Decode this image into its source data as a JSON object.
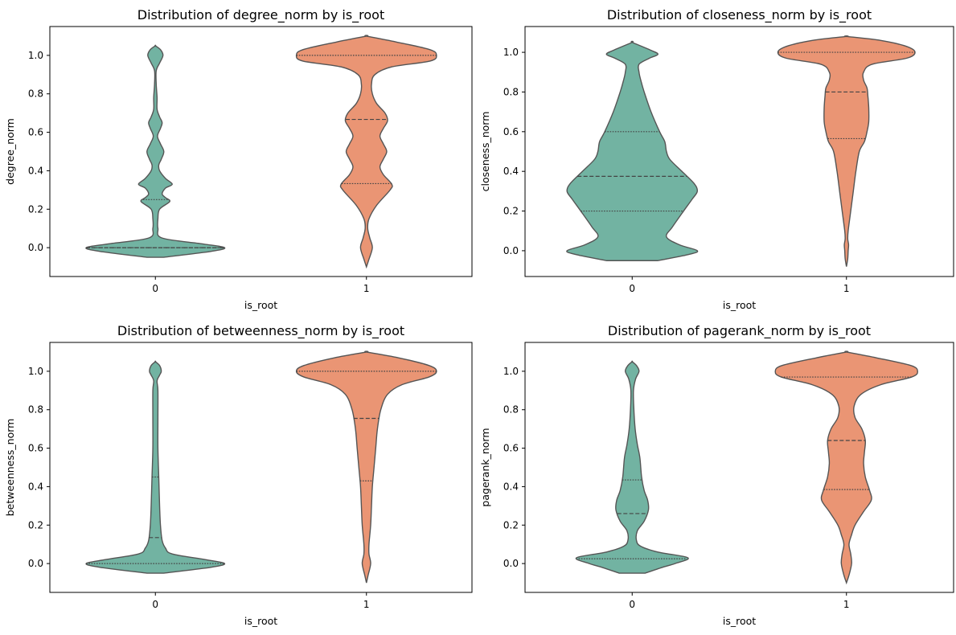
{
  "chart_data": [
    {
      "type": "violin",
      "title": "Distribution of degree_norm by is_root",
      "xlabel": "is_root",
      "ylabel": "degree_norm",
      "categories": [
        "0",
        "1"
      ],
      "ylim": [
        -0.15,
        1.15
      ],
      "yticks": [
        "0.0",
        "0.2",
        "0.4",
        "0.6",
        "0.8",
        "1.0"
      ],
      "grid": false,
      "groups": [
        {
          "category": "0",
          "color": "#72b3a2",
          "range": [
            -0.05,
            1.05
          ],
          "profile": [
            [
              -0.05,
              0.1
            ],
            [
              -0.02,
              0.65
            ],
            [
              0.0,
              0.82
            ],
            [
              0.02,
              0.55
            ],
            [
              0.05,
              0.08
            ],
            [
              0.1,
              0.03
            ],
            [
              0.15,
              0.03
            ],
            [
              0.2,
              0.05
            ],
            [
              0.24,
              0.17
            ],
            [
              0.26,
              0.12
            ],
            [
              0.28,
              0.08
            ],
            [
              0.31,
              0.12
            ],
            [
              0.33,
              0.2
            ],
            [
              0.36,
              0.12
            ],
            [
              0.4,
              0.05
            ],
            [
              0.43,
              0.04
            ],
            [
              0.46,
              0.07
            ],
            [
              0.5,
              0.1
            ],
            [
              0.54,
              0.06
            ],
            [
              0.58,
              0.025
            ],
            [
              0.62,
              0.06
            ],
            [
              0.65,
              0.08
            ],
            [
              0.68,
              0.05
            ],
            [
              0.72,
              0.02
            ],
            [
              0.78,
              0.02
            ],
            [
              0.85,
              0.01
            ],
            [
              0.92,
              0.01
            ],
            [
              0.96,
              0.05
            ],
            [
              1.0,
              0.09
            ],
            [
              1.03,
              0.06
            ],
            [
              1.05,
              0.0
            ]
          ],
          "quartiles": [
            0.0,
            0.0,
            0.25
          ]
        },
        {
          "category": "1",
          "color": "#ea9574",
          "range": [
            -0.1,
            1.1
          ],
          "profile": [
            [
              -0.1,
              0.0
            ],
            [
              -0.06,
              0.03
            ],
            [
              0.0,
              0.07
            ],
            [
              0.05,
              0.04
            ],
            [
              0.1,
              0.015
            ],
            [
              0.15,
              0.03
            ],
            [
              0.22,
              0.12
            ],
            [
              0.3,
              0.28
            ],
            [
              0.33,
              0.3
            ],
            [
              0.38,
              0.2
            ],
            [
              0.42,
              0.16
            ],
            [
              0.46,
              0.2
            ],
            [
              0.5,
              0.24
            ],
            [
              0.54,
              0.2
            ],
            [
              0.58,
              0.16
            ],
            [
              0.62,
              0.2
            ],
            [
              0.66,
              0.25
            ],
            [
              0.7,
              0.22
            ],
            [
              0.75,
              0.12
            ],
            [
              0.8,
              0.07
            ],
            [
              0.85,
              0.06
            ],
            [
              0.9,
              0.1
            ],
            [
              0.94,
              0.3
            ],
            [
              0.97,
              0.75
            ],
            [
              1.0,
              0.83
            ],
            [
              1.03,
              0.75
            ],
            [
              1.07,
              0.35
            ],
            [
              1.1,
              0.0
            ]
          ],
          "quartiles": [
            0.333,
            0.667,
            1.0
          ]
        }
      ]
    },
    {
      "type": "violin",
      "title": "Distribution of closeness_norm by is_root",
      "xlabel": "is_root",
      "ylabel": "closeness_norm",
      "categories": [
        "0",
        "1"
      ],
      "ylim": [
        -0.13,
        1.13
      ],
      "yticks": [
        "0.0",
        "0.2",
        "0.4",
        "0.6",
        "0.8",
        "1.0"
      ],
      "grid": false,
      "groups": [
        {
          "category": "0",
          "color": "#72b3a2",
          "range": [
            -0.05,
            1.05
          ],
          "profile": [
            [
              -0.05,
              0.3
            ],
            [
              -0.02,
              0.65
            ],
            [
              0.0,
              0.76
            ],
            [
              0.03,
              0.55
            ],
            [
              0.07,
              0.4
            ],
            [
              0.12,
              0.47
            ],
            [
              0.2,
              0.6
            ],
            [
              0.26,
              0.7
            ],
            [
              0.3,
              0.76
            ],
            [
              0.34,
              0.72
            ],
            [
              0.4,
              0.58
            ],
            [
              0.46,
              0.44
            ],
            [
              0.5,
              0.4
            ],
            [
              0.55,
              0.38
            ],
            [
              0.6,
              0.32
            ],
            [
              0.7,
              0.22
            ],
            [
              0.8,
              0.14
            ],
            [
              0.86,
              0.1
            ],
            [
              0.9,
              0.08
            ],
            [
              0.94,
              0.08
            ],
            [
              0.97,
              0.2
            ],
            [
              0.99,
              0.3
            ],
            [
              1.01,
              0.22
            ],
            [
              1.05,
              0.0
            ]
          ],
          "quartiles": [
            0.2,
            0.375,
            0.6
          ]
        },
        {
          "category": "1",
          "color": "#ea9574",
          "range": [
            -0.08,
            1.08
          ],
          "profile": [
            [
              -0.08,
              0.0
            ],
            [
              -0.04,
              0.015
            ],
            [
              0.0,
              0.02
            ],
            [
              0.03,
              0.025
            ],
            [
              0.06,
              0.015
            ],
            [
              0.1,
              0.02
            ],
            [
              0.2,
              0.05
            ],
            [
              0.3,
              0.08
            ],
            [
              0.4,
              0.11
            ],
            [
              0.5,
              0.15
            ],
            [
              0.55,
              0.21
            ],
            [
              0.6,
              0.24
            ],
            [
              0.65,
              0.26
            ],
            [
              0.72,
              0.26
            ],
            [
              0.78,
              0.25
            ],
            [
              0.82,
              0.24
            ],
            [
              0.86,
              0.2
            ],
            [
              0.9,
              0.2
            ],
            [
              0.94,
              0.3
            ],
            [
              0.97,
              0.7
            ],
            [
              1.0,
              0.8
            ],
            [
              1.03,
              0.7
            ],
            [
              1.06,
              0.4
            ],
            [
              1.08,
              0.0
            ]
          ],
          "quartiles": [
            0.565,
            0.8,
            1.0
          ]
        }
      ]
    },
    {
      "type": "violin",
      "title": "Distribution of betweenness_norm by is_root",
      "xlabel": "is_root",
      "ylabel": "betweenness_norm",
      "categories": [
        "0",
        "1"
      ],
      "ylim": [
        -0.15,
        1.15
      ],
      "yticks": [
        "0.0",
        "0.2",
        "0.4",
        "0.6",
        "0.8",
        "1.0"
      ],
      "grid": false,
      "groups": [
        {
          "category": "0",
          "color": "#72b3a2",
          "range": [
            -0.05,
            1.05
          ],
          "profile": [
            [
              -0.05,
              0.1
            ],
            [
              -0.02,
              0.65
            ],
            [
              0.0,
              0.82
            ],
            [
              0.02,
              0.6
            ],
            [
              0.05,
              0.2
            ],
            [
              0.08,
              0.12
            ],
            [
              0.12,
              0.08
            ],
            [
              0.2,
              0.06
            ],
            [
              0.3,
              0.05
            ],
            [
              0.45,
              0.04
            ],
            [
              0.6,
              0.03
            ],
            [
              0.75,
              0.03
            ],
            [
              0.9,
              0.03
            ],
            [
              0.95,
              0.02
            ],
            [
              0.98,
              0.05
            ],
            [
              1.0,
              0.07
            ],
            [
              1.03,
              0.05
            ],
            [
              1.05,
              0.0
            ]
          ],
          "quartiles": [
            0.0,
            0.135,
            0.45
          ]
        },
        {
          "category": "1",
          "color": "#ea9574",
          "range": [
            -0.1,
            1.1
          ],
          "profile": [
            [
              -0.1,
              0.0
            ],
            [
              -0.06,
              0.02
            ],
            [
              0.0,
              0.05
            ],
            [
              0.05,
              0.03
            ],
            [
              0.1,
              0.03
            ],
            [
              0.2,
              0.05
            ],
            [
              0.3,
              0.06
            ],
            [
              0.4,
              0.07
            ],
            [
              0.5,
              0.09
            ],
            [
              0.6,
              0.11
            ],
            [
              0.7,
              0.13
            ],
            [
              0.8,
              0.17
            ],
            [
              0.88,
              0.25
            ],
            [
              0.93,
              0.42
            ],
            [
              0.97,
              0.74
            ],
            [
              1.0,
              0.83
            ],
            [
              1.03,
              0.74
            ],
            [
              1.07,
              0.38
            ],
            [
              1.1,
              0.0
            ]
          ],
          "quartiles": [
            0.43,
            0.755,
            1.0
          ]
        }
      ]
    },
    {
      "type": "violin",
      "title": "Distribution of pagerank_norm by is_root",
      "xlabel": "is_root",
      "ylabel": "pagerank_norm",
      "categories": [
        "0",
        "1"
      ],
      "ylim": [
        -0.15,
        1.15
      ],
      "yticks": [
        "0.0",
        "0.2",
        "0.4",
        "0.6",
        "0.8",
        "1.0"
      ],
      "grid": false,
      "groups": [
        {
          "category": "0",
          "color": "#72b3a2",
          "range": [
            -0.05,
            1.05
          ],
          "profile": [
            [
              -0.05,
              0.15
            ],
            [
              -0.02,
              0.35
            ],
            [
              0.0,
              0.5
            ],
            [
              0.03,
              0.65
            ],
            [
              0.06,
              0.3
            ],
            [
              0.09,
              0.1
            ],
            [
              0.12,
              0.05
            ],
            [
              0.17,
              0.06
            ],
            [
              0.22,
              0.14
            ],
            [
              0.28,
              0.19
            ],
            [
              0.33,
              0.18
            ],
            [
              0.38,
              0.14
            ],
            [
              0.45,
              0.11
            ],
            [
              0.55,
              0.09
            ],
            [
              0.62,
              0.06
            ],
            [
              0.7,
              0.035
            ],
            [
              0.8,
              0.02
            ],
            [
              0.9,
              0.015
            ],
            [
              0.96,
              0.04
            ],
            [
              1.0,
              0.08
            ],
            [
              1.03,
              0.05
            ],
            [
              1.05,
              0.0
            ]
          ],
          "quartiles": [
            0.025,
            0.26,
            0.435
          ]
        },
        {
          "category": "1",
          "color": "#ea9574",
          "range": [
            -0.1,
            1.1
          ],
          "profile": [
            [
              -0.1,
              0.0
            ],
            [
              -0.06,
              0.03
            ],
            [
              0.0,
              0.06
            ],
            [
              0.05,
              0.05
            ],
            [
              0.1,
              0.03
            ],
            [
              0.15,
              0.06
            ],
            [
              0.2,
              0.1
            ],
            [
              0.27,
              0.2
            ],
            [
              0.33,
              0.29
            ],
            [
              0.38,
              0.27
            ],
            [
              0.45,
              0.22
            ],
            [
              0.52,
              0.2
            ],
            [
              0.58,
              0.21
            ],
            [
              0.64,
              0.22
            ],
            [
              0.7,
              0.18
            ],
            [
              0.76,
              0.1
            ],
            [
              0.82,
              0.09
            ],
            [
              0.88,
              0.17
            ],
            [
              0.93,
              0.4
            ],
            [
              0.97,
              0.76
            ],
            [
              1.0,
              0.83
            ],
            [
              1.03,
              0.75
            ],
            [
              1.07,
              0.35
            ],
            [
              1.1,
              0.0
            ]
          ],
          "quartiles": [
            0.385,
            0.64,
            0.97
          ]
        }
      ]
    }
  ]
}
